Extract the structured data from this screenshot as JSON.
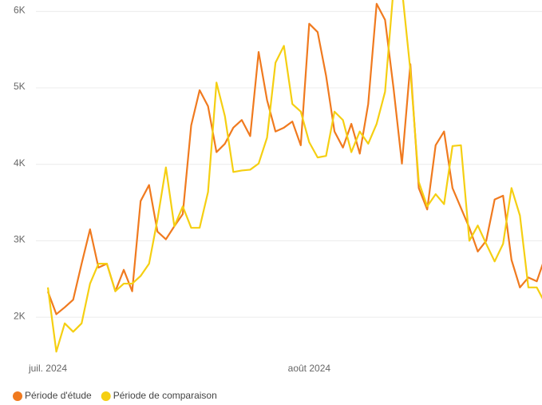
{
  "chart_data": {
    "type": "line",
    "categories": [
      "juil. 2024",
      null,
      null,
      null,
      null,
      null,
      null,
      null,
      null,
      null,
      null,
      null,
      null,
      null,
      null,
      null,
      null,
      null,
      null,
      null,
      null,
      null,
      null,
      null,
      null,
      null,
      null,
      null,
      null,
      null,
      null,
      "août 2024",
      null,
      null,
      null,
      null,
      null,
      null,
      null,
      null,
      null,
      null,
      null,
      null,
      null,
      null,
      null,
      null,
      null,
      null,
      null,
      null,
      null,
      null,
      null,
      null,
      null,
      null,
      null,
      null
    ],
    "series": [
      {
        "name": "Période d'étude",
        "color": "#f07a1f",
        "values": [
          2336,
          2040,
          2130,
          2230,
          2700,
          3150,
          2650,
          2700,
          2340,
          2620,
          2340,
          3520,
          3730,
          3120,
          3020,
          3190,
          3350,
          4510,
          4970,
          4760,
          4160,
          4270,
          4480,
          4580,
          4370,
          5470,
          4840,
          4430,
          4480,
          4560,
          4250,
          5840,
          5730,
          5160,
          4430,
          4220,
          4530,
          4140,
          4790,
          6100,
          5890,
          5000,
          4010,
          5310,
          3690,
          3410,
          4250,
          4430,
          3690,
          3430,
          3170,
          2860,
          3000,
          3540,
          3590,
          2750,
          2390,
          2520,
          2470,
          2790
        ]
      },
      {
        "name": "Période de comparaison",
        "color": "#f5cf12",
        "values": [
          2390,
          1550,
          1920,
          1810,
          1920,
          2440,
          2700,
          2700,
          2340,
          2440,
          2440,
          2540,
          2700,
          3280,
          3960,
          3190,
          3450,
          3170,
          3170,
          3640,
          5070,
          4630,
          3900,
          3920,
          3930,
          4010,
          4350,
          5330,
          5550,
          4790,
          4690,
          4290,
          4090,
          4110,
          4690,
          4580,
          4160,
          4430,
          4270,
          4530,
          4950,
          6300,
          6300,
          5230,
          3770,
          3450,
          3610,
          3480,
          4240,
          4250,
          3000,
          3200,
          2960,
          2730,
          2960,
          3690,
          3330,
          2390,
          2390,
          2180
        ]
      }
    ],
    "ylim": [
      1500,
      6150
    ],
    "yticks": [
      {
        "value": 2000,
        "label": "2K"
      },
      {
        "value": 3000,
        "label": "3K"
      },
      {
        "value": 4000,
        "label": "4K"
      },
      {
        "value": 5000,
        "label": "5K"
      },
      {
        "value": 6000,
        "label": "6K"
      }
    ],
    "grid": true,
    "legend": "bottom-left"
  }
}
